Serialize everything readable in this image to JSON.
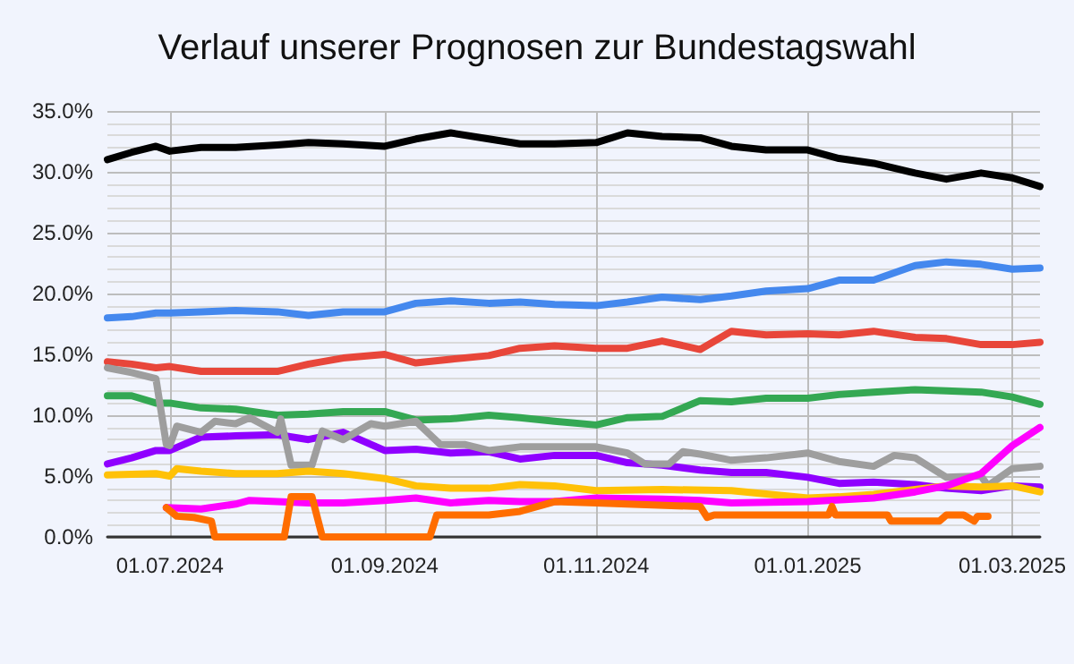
{
  "chart_data": {
    "type": "line",
    "title": "Verlauf unserer Prognosen zur Bundestagswahl",
    "xlim": [
      "2024-06-13",
      "2025-03-09"
    ],
    "xticks": [
      {
        "value": "2024-07-01",
        "label": "01.07.2024"
      },
      {
        "value": "2024-09-01",
        "label": "01.09.2024"
      },
      {
        "value": "2024-11-01",
        "label": "01.11.2024"
      },
      {
        "value": "2025-01-01",
        "label": "01.01.2025"
      },
      {
        "value": "2025-03-01",
        "label": "01.03.2025"
      }
    ],
    "ylim": [
      0,
      35
    ],
    "yticks": [
      {
        "value": 0,
        "label": "0.0%"
      },
      {
        "value": 1,
        "label": null
      },
      {
        "value": 2,
        "label": null
      },
      {
        "value": 3,
        "label": null
      },
      {
        "value": 4,
        "label": null
      },
      {
        "value": 5,
        "label": "5.0%"
      },
      {
        "value": 6,
        "label": null
      },
      {
        "value": 7,
        "label": null
      },
      {
        "value": 8,
        "label": null
      },
      {
        "value": 9,
        "label": null
      },
      {
        "value": 10,
        "label": "10.0%"
      },
      {
        "value": 11,
        "label": null
      },
      {
        "value": 12,
        "label": null
      },
      {
        "value": 13,
        "label": null
      },
      {
        "value": 14,
        "label": null
      },
      {
        "value": 15,
        "label": "15.0%"
      },
      {
        "value": 16,
        "label": null
      },
      {
        "value": 17,
        "label": null
      },
      {
        "value": 18,
        "label": null
      },
      {
        "value": 19,
        "label": null
      },
      {
        "value": 20,
        "label": "20.0%"
      },
      {
        "value": 21,
        "label": null
      },
      {
        "value": 22,
        "label": null
      },
      {
        "value": 23,
        "label": null
      },
      {
        "value": 24,
        "label": null
      },
      {
        "value": 25,
        "label": "25.0%"
      },
      {
        "value": 26,
        "label": null
      },
      {
        "value": 27,
        "label": null
      },
      {
        "value": 28,
        "label": null
      },
      {
        "value": 29,
        "label": null
      },
      {
        "value": 30,
        "label": "30.0%"
      },
      {
        "value": 31,
        "label": null
      },
      {
        "value": 32,
        "label": null
      },
      {
        "value": 33,
        "label": null
      },
      {
        "value": 34,
        "label": null
      },
      {
        "value": 35,
        "label": "35.0%"
      }
    ],
    "grid": true,
    "marker": "none",
    "line_style": "solid",
    "x": [
      "2024-06-13",
      "2024-06-20",
      "2024-06-27",
      "2024-07-01",
      "2024-07-10",
      "2024-07-20",
      "2024-08-01",
      "2024-08-10",
      "2024-08-20",
      "2024-09-01",
      "2024-09-10",
      "2024-09-20",
      "2024-10-01",
      "2024-10-10",
      "2024-10-20",
      "2024-11-01",
      "2024-11-10",
      "2024-11-20",
      "2024-12-01",
      "2024-12-10",
      "2024-12-20",
      "2025-01-01",
      "2025-01-10",
      "2025-01-20",
      "2025-02-01",
      "2025-02-10",
      "2025-02-20",
      "2025-03-01",
      "2025-03-09"
    ],
    "series": [
      {
        "color": "#000000",
        "values": [
          31.0,
          31.6,
          32.1,
          31.7,
          32.0,
          32.0,
          32.2,
          32.4,
          32.3,
          32.1,
          32.7,
          33.2,
          32.7,
          32.3,
          32.3,
          32.4,
          33.2,
          32.9,
          32.8,
          32.1,
          31.8,
          31.8,
          31.1,
          30.7,
          29.9,
          29.4,
          29.9,
          29.5,
          28.8
        ]
      },
      {
        "color": "#4488ee",
        "values": [
          18.0,
          18.1,
          18.4,
          18.4,
          18.5,
          18.6,
          18.5,
          18.2,
          18.5,
          18.5,
          19.2,
          19.4,
          19.2,
          19.3,
          19.1,
          19.0,
          19.3,
          19.7,
          19.5,
          19.8,
          20.2,
          20.4,
          21.1,
          21.1,
          22.3,
          22.6,
          22.4,
          22.0,
          22.1
        ]
      },
      {
        "color": "#e8463a",
        "values": [
          14.4,
          14.2,
          13.9,
          14.0,
          13.6,
          13.6,
          13.6,
          14.2,
          14.7,
          15.0,
          14.3,
          14.6,
          14.9,
          15.5,
          15.7,
          15.5,
          15.5,
          16.1,
          15.4,
          16.9,
          16.6,
          16.7,
          16.6,
          16.9,
          16.4,
          16.3,
          15.8,
          15.8,
          16.0
        ]
      },
      {
        "color": "#34a853",
        "values": [
          11.6,
          11.6,
          11.0,
          11.0,
          10.6,
          10.5,
          10.0,
          10.1,
          10.3,
          10.3,
          9.6,
          9.7,
          10.0,
          9.8,
          9.5,
          9.2,
          9.8,
          9.9,
          11.2,
          11.1,
          11.4,
          11.4,
          11.7,
          11.9,
          12.1,
          12.0,
          11.9,
          11.5,
          10.9
        ]
      },
      {
        "color": "#8f00ff",
        "values": [
          6.0,
          6.5,
          7.1,
          7.1,
          8.2,
          8.3,
          8.4,
          8.0,
          8.6,
          7.1,
          7.2,
          6.9,
          7.0,
          6.4,
          6.7,
          6.7,
          6.1,
          5.9,
          5.5,
          5.3,
          5.3,
          4.9,
          4.4,
          4.5,
          4.3,
          4.0,
          3.8,
          4.2,
          4.1
        ]
      },
      {
        "color": "#9e9e9e",
        "x": [
          "2024-06-13",
          "2024-06-20",
          "2024-06-27",
          "2024-06-30",
          "2024-07-01",
          "2024-07-03",
          "2024-07-10",
          "2024-07-14",
          "2024-07-20",
          "2024-07-24",
          "2024-08-01",
          "2024-08-02",
          "2024-08-05",
          "2024-08-11",
          "2024-08-14",
          "2024-08-20",
          "2024-08-28",
          "2024-09-01",
          "2024-09-10",
          "2024-09-17",
          "2024-09-24",
          "2024-10-01",
          "2024-10-10",
          "2024-10-20",
          "2024-11-01",
          "2024-11-10",
          "2024-11-15",
          "2024-11-22",
          "2024-11-26",
          "2024-12-01",
          "2024-12-10",
          "2024-12-20",
          "2025-01-01",
          "2025-01-10",
          "2025-01-20",
          "2025-01-26",
          "2025-02-01",
          "2025-02-10",
          "2025-02-20",
          "2025-02-22",
          "2025-03-01",
          "2025-03-09"
        ],
        "values": [
          13.9,
          13.5,
          13.0,
          7.6,
          7.5,
          9.1,
          8.6,
          9.5,
          9.3,
          9.8,
          8.6,
          9.7,
          5.9,
          5.9,
          8.7,
          8.0,
          9.3,
          9.1,
          9.5,
          7.6,
          7.6,
          7.1,
          7.4,
          7.4,
          7.4,
          6.9,
          6.0,
          6.0,
          7.0,
          6.8,
          6.3,
          6.5,
          6.9,
          6.2,
          5.8,
          6.7,
          6.5,
          4.9,
          5.0,
          4.2,
          5.6,
          5.8
        ]
      },
      {
        "color": "#ffc107",
        "x": [
          "2024-06-13",
          "2024-06-27",
          "2024-07-01",
          "2024-07-03",
          "2024-07-10",
          "2024-07-20",
          "2024-08-01",
          "2024-08-10",
          "2024-08-20",
          "2024-09-01",
          "2024-09-10",
          "2024-09-20",
          "2024-10-01",
          "2024-10-10",
          "2024-10-20",
          "2024-11-01",
          "2024-11-20",
          "2024-12-10",
          "2025-01-01",
          "2025-01-10",
          "2025-01-20",
          "2025-02-01",
          "2025-02-10",
          "2025-02-20",
          "2025-03-01",
          "2025-03-09"
        ],
        "values": [
          5.1,
          5.2,
          5.0,
          5.6,
          5.4,
          5.2,
          5.2,
          5.4,
          5.2,
          4.8,
          4.2,
          4.0,
          4.0,
          4.3,
          4.2,
          3.8,
          3.9,
          3.8,
          3.2,
          3.3,
          3.5,
          3.9,
          4.2,
          4.1,
          4.2,
          3.7
        ]
      },
      {
        "color": "#ff00ff",
        "x": [
          "2024-06-30",
          "2024-07-10",
          "2024-07-20",
          "2024-07-24",
          "2024-08-01",
          "2024-08-10",
          "2024-08-20",
          "2024-09-01",
          "2024-09-10",
          "2024-09-20",
          "2024-10-01",
          "2024-10-10",
          "2024-10-20",
          "2024-11-01",
          "2024-11-20",
          "2024-12-01",
          "2024-12-10",
          "2025-01-01",
          "2025-01-20",
          "2025-02-01",
          "2025-02-10",
          "2025-02-20",
          "2025-03-01",
          "2025-03-09"
        ],
        "values": [
          2.4,
          2.3,
          2.7,
          3.0,
          2.9,
          2.8,
          2.8,
          3.0,
          3.2,
          2.8,
          3.0,
          2.9,
          2.9,
          3.2,
          3.1,
          3.0,
          2.8,
          2.9,
          3.2,
          3.7,
          4.2,
          5.2,
          7.5,
          9.0
        ]
      },
      {
        "color": "#ff6d00",
        "x": [
          "2024-06-30",
          "2024-07-03",
          "2024-07-08",
          "2024-07-13",
          "2024-07-14",
          "2024-08-03",
          "2024-08-05",
          "2024-08-11",
          "2024-08-14",
          "2024-09-14",
          "2024-09-16",
          "2024-10-01",
          "2024-10-10",
          "2024-10-20",
          "2024-11-01",
          "2024-11-10",
          "2024-12-01",
          "2024-12-03",
          "2024-12-05",
          "2024-12-20",
          "2025-01-07",
          "2025-01-08",
          "2025-01-09",
          "2025-01-24",
          "2025-01-25",
          "2025-02-08",
          "2025-02-10",
          "2025-02-15",
          "2025-02-18",
          "2025-02-19",
          "2025-02-22"
        ],
        "values": [
          2.4,
          1.7,
          1.6,
          1.3,
          0,
          0,
          3.3,
          3.3,
          0,
          0,
          1.8,
          1.8,
          2.1,
          2.9,
          2.8,
          2.7,
          2.5,
          1.6,
          1.8,
          1.8,
          1.8,
          2.5,
          1.8,
          1.8,
          1.3,
          1.3,
          1.8,
          1.8,
          1.3,
          1.7,
          1.7
        ]
      }
    ]
  }
}
